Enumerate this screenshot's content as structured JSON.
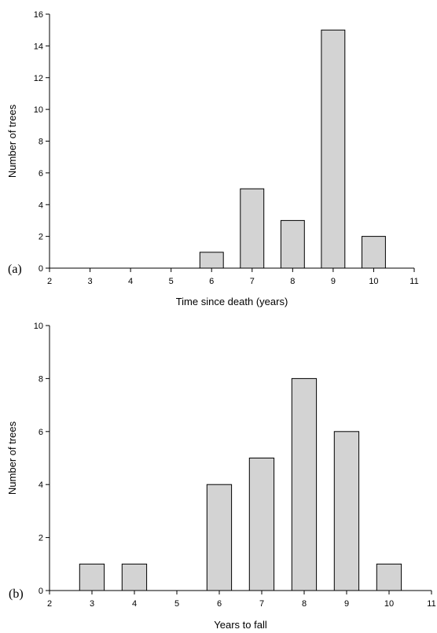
{
  "chart_data": [
    {
      "type": "bar",
      "panel_label": "(a)",
      "x": [
        6,
        7,
        8,
        9,
        10
      ],
      "values": [
        1,
        5,
        3,
        15,
        2
      ],
      "xlim": [
        2,
        11
      ],
      "ylim": [
        0,
        16
      ],
      "xticks": [
        "2",
        "3",
        "4",
        "5",
        "6",
        "7",
        "8",
        "9",
        "10",
        "11"
      ],
      "yticks": [
        "0",
        "2",
        "4",
        "6",
        "8",
        "10",
        "12",
        "14",
        "16"
      ],
      "xlabel": "Time since death (years)",
      "ylabel": "Number of trees",
      "bar_color": "#d3d3d3",
      "grid": false
    },
    {
      "type": "bar",
      "panel_label": "(b)",
      "x": [
        3,
        4,
        6,
        7,
        8,
        9,
        10
      ],
      "values": [
        1,
        1,
        4,
        5,
        8,
        6,
        1
      ],
      "xlim": [
        2,
        11
      ],
      "ylim": [
        0,
        10
      ],
      "xticks": [
        "2",
        "3",
        "4",
        "5",
        "6",
        "7",
        "8",
        "9",
        "10",
        "11"
      ],
      "yticks": [
        "0",
        "2",
        "4",
        "6",
        "8",
        "10"
      ],
      "xlabel": "Years to fall",
      "ylabel": "Number of trees",
      "bar_color": "#d3d3d3",
      "grid": false
    }
  ]
}
